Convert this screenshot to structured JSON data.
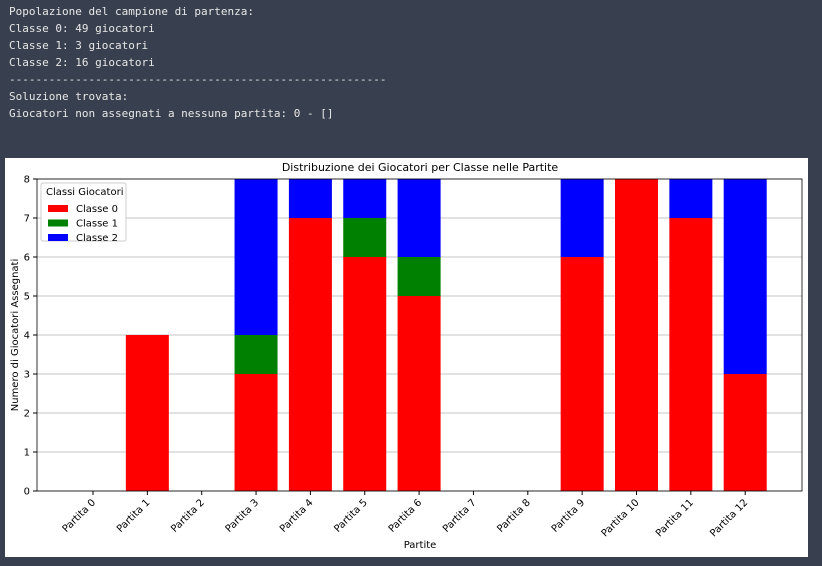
{
  "output": [
    "Popolazione del campione di partenza:",
    "Classe 0: 49 giocatori",
    "Classe 1: 3 giocatori",
    "Classe 2: 16 giocatori",
    "---------------------------------------------------------",
    "Soluzione trovata:",
    "Giocatori non assegnati a nessuna partita: 0 - []"
  ],
  "chart_data": {
    "type": "stacked-bar",
    "title": "Distribuzione dei Giocatori per Classe nelle Partite",
    "x_label": "Partite",
    "y_label": "Numero di Giocatori Assegnati",
    "legend_title": "Classi Giocatori",
    "legend_position": "upper left",
    "grid": true,
    "categories": [
      "Partita 0",
      "Partita 1",
      "Partita 2",
      "Partita 3",
      "Partita 4",
      "Partita 5",
      "Partita 6",
      "Partita 7",
      "Partita 8",
      "Partita 9",
      "Partita 10",
      "Partita 11",
      "Partita 12"
    ],
    "series": [
      {
        "name": "Classe 0",
        "color": "#ff0000",
        "values": [
          0,
          4,
          0,
          3,
          7,
          6,
          5,
          0,
          0,
          6,
          8,
          7,
          3
        ]
      },
      {
        "name": "Classe 1",
        "color": "#008000",
        "values": [
          0,
          0,
          0,
          1,
          0,
          1,
          1,
          0,
          0,
          0,
          0,
          0,
          0
        ]
      },
      {
        "name": "Classe 2",
        "color": "#0000ff",
        "values": [
          0,
          0,
          0,
          4,
          1,
          1,
          2,
          0,
          0,
          2,
          0,
          1,
          5
        ]
      }
    ],
    "ylim": [
      0,
      8
    ],
    "yticks": [
      0,
      1,
      2,
      3,
      4,
      5,
      6,
      7,
      8
    ]
  }
}
